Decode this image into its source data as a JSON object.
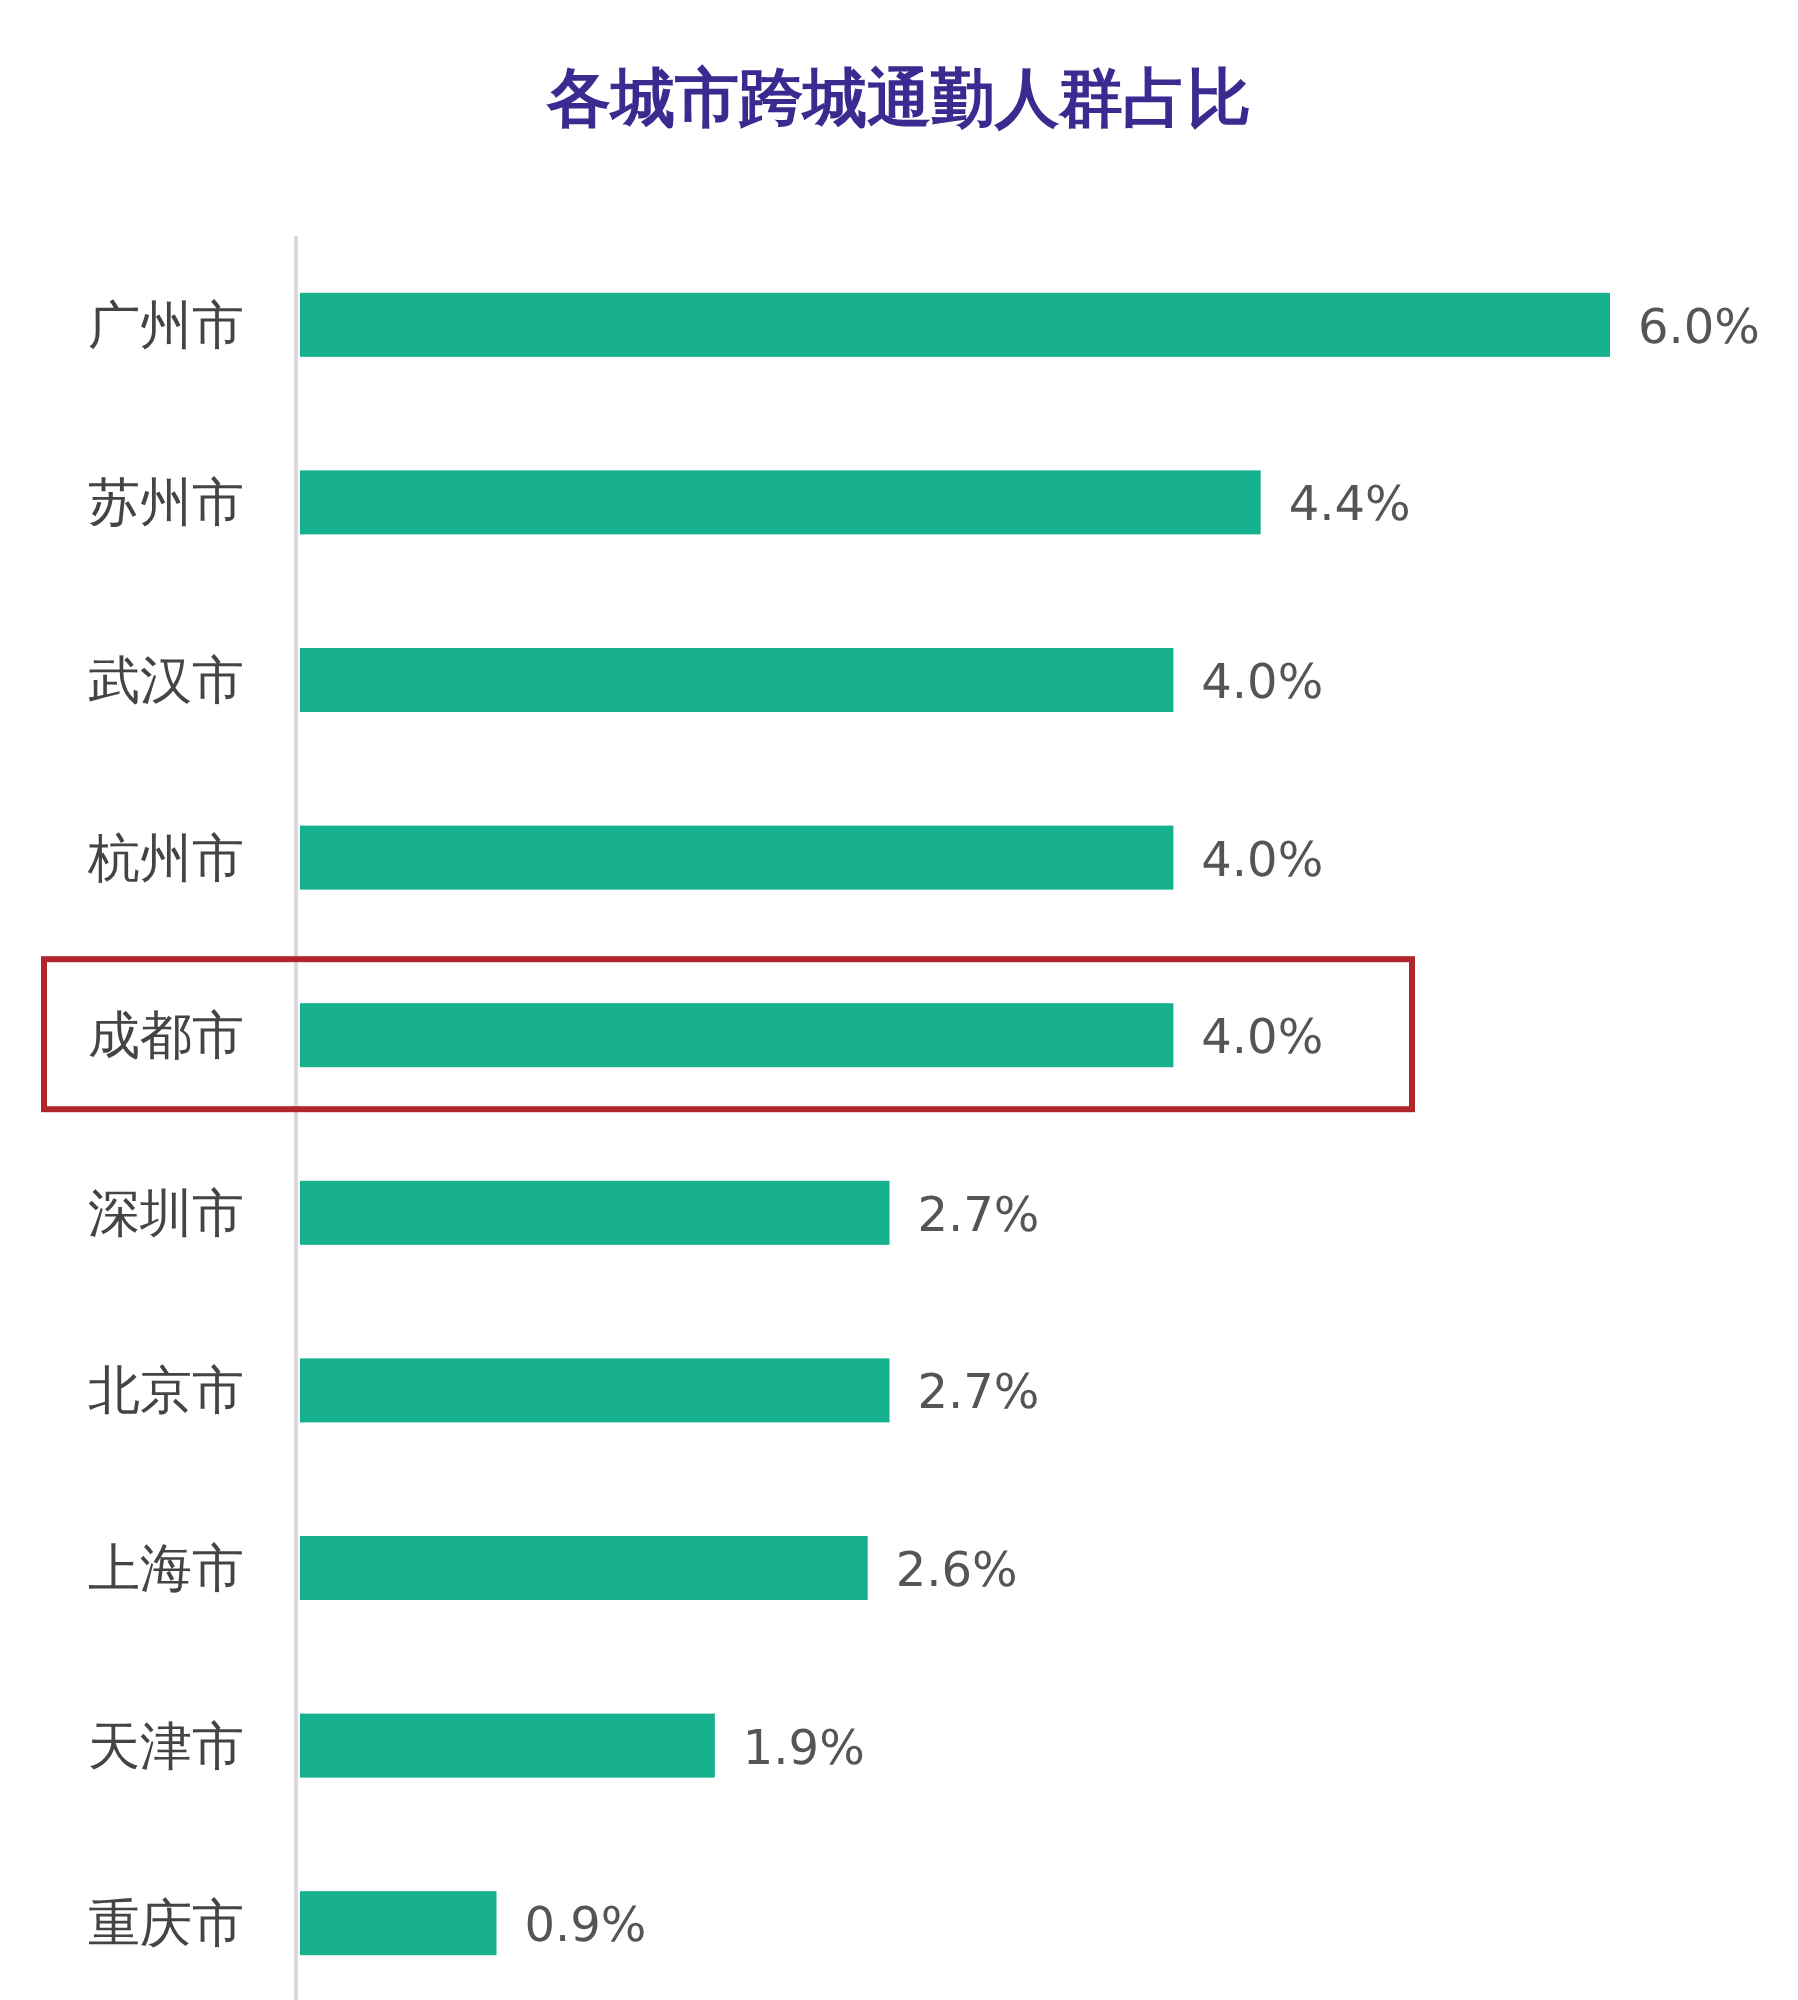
{
  "chart_data": {
    "type": "bar",
    "orientation": "horizontal",
    "title": "各城市跨城通勤人群占比",
    "categories": [
      "广州市",
      "苏州市",
      "武汉市",
      "杭州市",
      "成都市",
      "深圳市",
      "北京市",
      "上海市",
      "天津市",
      "重庆市"
    ],
    "values": [
      6.0,
      4.4,
      4.0,
      4.0,
      4.0,
      2.7,
      2.7,
      2.6,
      1.9,
      0.9
    ],
    "value_labels": [
      "6.0%",
      "4.4%",
      "4.0%",
      "4.0%",
      "4.0%",
      "2.7%",
      "2.7%",
      "2.6%",
      "1.9%",
      "0.9%"
    ],
    "color": "#16b08e"
  }
}
